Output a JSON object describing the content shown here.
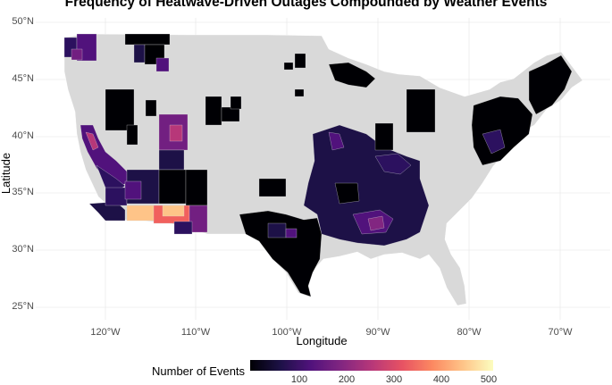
{
  "title": "Frequency of Heatwave-Driven Outages Compounded by Weather Events",
  "axes": {
    "x_label": "Longitude",
    "y_label": "Latitude",
    "x_ticks": [
      "120°W",
      "110°W",
      "100°W",
      "90°W",
      "80°W",
      "70°W"
    ],
    "y_ticks": [
      "50°N",
      "45°N",
      "40°N",
      "35°N",
      "30°N",
      "25°N"
    ]
  },
  "legend": {
    "title": "Number of Events",
    "ticks": [
      "100",
      "200",
      "300",
      "400",
      "500"
    ],
    "range": [
      0,
      500
    ],
    "palette": "magma"
  },
  "colors": {
    "no_data": "#d9d9d9",
    "low": "#000004",
    "mid_low": "#2c115f",
    "mid": "#721f81",
    "mid_high": "#b73779",
    "high": "#f1605d",
    "max": "#fcfdbf"
  }
}
